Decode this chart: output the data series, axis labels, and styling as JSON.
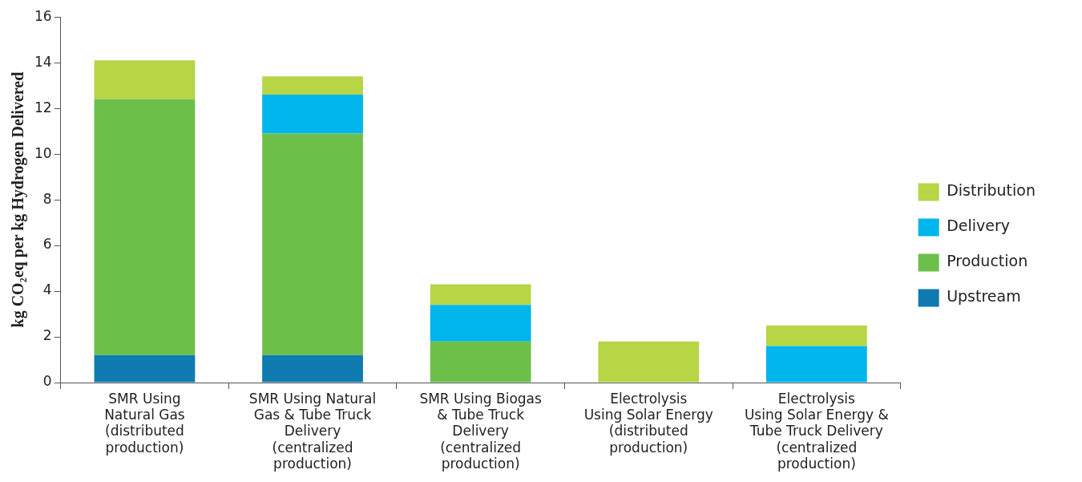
{
  "chart_data": {
    "type": "bar",
    "stacked": true,
    "ylabel": "kg CO₂eq per kg Hydrogen Delivered",
    "categories": [
      "SMR Using\nNatural Gas\n(distributed\nproduction)",
      "SMR Using Natural\nGas & Tube Truck\nDelivery\n(centralized\nproduction)",
      "SMR Using Biogas\n& Tube Truck\nDelivery\n(centralized\nproduction)",
      "Electrolysis\nUsing Solar Energy\n(distributed\nproduction)",
      "Electrolysis\nUsing Solar Energy &\nTube Truck Delivery\n(centralized\nproduction)"
    ],
    "series": [
      {
        "name": "Upstream",
        "color": "#0f7bb0",
        "values": [
          1.2,
          1.2,
          null,
          null,
          null
        ]
      },
      {
        "name": "Production",
        "color": "#6cc04a",
        "values": [
          11.2,
          9.7,
          1.8,
          null,
          null
        ]
      },
      {
        "name": "Delivery",
        "color": "#00b5ec",
        "values": [
          null,
          1.7,
          1.6,
          null,
          1.6
        ]
      },
      {
        "name": "Distribution",
        "color": "#b7d544",
        "values": [
          1.7,
          0.8,
          0.9,
          1.8,
          0.9
        ]
      }
    ],
    "ylim": [
      0,
      16
    ],
    "yticks": [
      0,
      2,
      4,
      6,
      8,
      10,
      12,
      14,
      16
    ],
    "grid": false,
    "legend": "right"
  }
}
